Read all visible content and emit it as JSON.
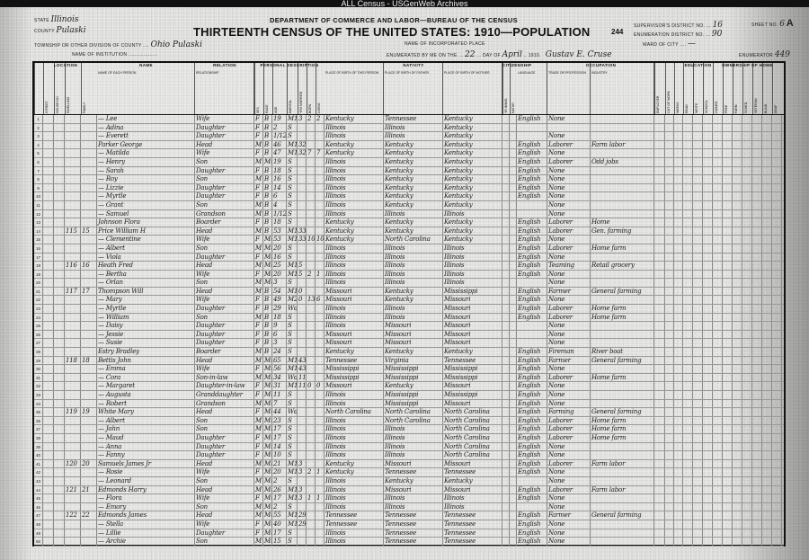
{
  "watermark": "ALL Census - USGenWeb Archives",
  "header": {
    "state_label": "State",
    "state": "Illinois",
    "county_label": "County",
    "county": "Pulaski",
    "township_label": "Township or other division of county",
    "township": "Ohio Pulaski",
    "institution_label": "Name of institution",
    "department": "DEPARTMENT OF COMMERCE AND LABOR—BUREAU OF THE CENSUS",
    "title": "THIRTEENTH CENSUS OF THE UNITED STATES: 1910—POPULATION",
    "page_number": "244",
    "incorporated_label": "Name of incorporated place",
    "enumerated_label": "Enumerated by me on the",
    "day": "22",
    "day_of_label": "day of",
    "month": "April",
    "year_label": "1910.",
    "enumerator_name": "Gustav E. Cruse",
    "supervisor_label": "Supervisor's District No.",
    "supervisor": "16",
    "ed_label": "Enumeration District No.",
    "ed": "90",
    "ward_label": "Ward of city",
    "ward": "—",
    "sheet_label": "Sheet No.",
    "sheet": "6",
    "sheet_letter": "A",
    "enumerator_label": "Enumerator",
    "enumerator_no": "449"
  },
  "sections": [
    "Location",
    "Name",
    "Relation",
    "Personal Description",
    "Nativity",
    "Citizenship",
    "Occupation",
    "Education",
    "Ownership of Home"
  ],
  "columns": [
    "",
    "Street",
    "House no.",
    "Dwelling",
    "Family",
    "Name of each person",
    "Relationship",
    "Sex",
    "Race",
    "Age",
    "Marital",
    "Yrs married",
    "Born",
    "Living",
    "Place of birth of this person",
    "Place of birth of father",
    "Place of birth of mother",
    "Yr immig.",
    "Natur.",
    "Language",
    "Trade or profession",
    "Industry",
    "Employer",
    "Out of work",
    "Weeks",
    "Read",
    "Write",
    "School",
    "Owned",
    "Free",
    "Farm",
    "Sched.",
    "Veteran",
    "Blind",
    "Deaf"
  ],
  "rows": [
    [
      "1",
      "",
      "",
      "",
      "",
      "— Lee",
      "Wife",
      "F",
      "B",
      "19",
      "M1",
      "3",
      "2",
      "2",
      "Kentucky",
      "Tennessee",
      "Kentucky",
      "English",
      "None",
      ""
    ],
    [
      "2",
      "",
      "",
      "",
      "",
      "— Adina",
      "Daughter",
      "F",
      "B",
      "2",
      "S",
      "",
      "",
      "",
      "Illinois",
      "Illinois",
      "Kentucky",
      "",
      "",
      ""
    ],
    [
      "3",
      "",
      "",
      "",
      "",
      "— Everett",
      "Daughter",
      "F",
      "B",
      "1/12",
      "S",
      "",
      "",
      "",
      "Illinois",
      "Illinois",
      "Kentucky",
      "",
      "None",
      ""
    ],
    [
      "4",
      "",
      "",
      "",
      "",
      "Parker George",
      "Head",
      "M",
      "B",
      "46",
      "M1",
      "32",
      "",
      "",
      "Kentucky",
      "Kentucky",
      "Kentucky",
      "English",
      "Laborer",
      "Farm labor"
    ],
    [
      "5",
      "",
      "",
      "",
      "",
      "— Matilda",
      "Wife",
      "F",
      "B",
      "47",
      "M1",
      "32",
      "7",
      "7",
      "Kentucky",
      "Kentucky",
      "Kentucky",
      "English",
      "None",
      ""
    ],
    [
      "6",
      "",
      "",
      "",
      "",
      "— Henry",
      "Son",
      "M",
      "Mu",
      "19",
      "S",
      "",
      "",
      "",
      "Illinois",
      "Kentucky",
      "Kentucky",
      "English",
      "Laborer",
      "Odd jobs"
    ],
    [
      "7",
      "",
      "",
      "",
      "",
      "— Sarah",
      "Daughter",
      "F",
      "B",
      "18",
      "S",
      "",
      "",
      "",
      "Illinois",
      "Kentucky",
      "Kentucky",
      "English",
      "None",
      ""
    ],
    [
      "8",
      "",
      "",
      "",
      "",
      "— Roy",
      "Son",
      "M",
      "B",
      "16",
      "S",
      "",
      "",
      "",
      "Illinois",
      "Kentucky",
      "Kentucky",
      "English",
      "None",
      ""
    ],
    [
      "9",
      "",
      "",
      "",
      "",
      "— Lizzie",
      "Daughter",
      "F",
      "B",
      "14",
      "S",
      "",
      "",
      "",
      "Illinois",
      "Kentucky",
      "Kentucky",
      "English",
      "None",
      ""
    ],
    [
      "10",
      "",
      "",
      "",
      "",
      "— Myrtle",
      "Daughter",
      "F",
      "B",
      "6",
      "S",
      "",
      "",
      "",
      "Illinois",
      "Kentucky",
      "Kentucky",
      "English",
      "None",
      ""
    ],
    [
      "11",
      "",
      "",
      "",
      "",
      "— Grant",
      "Son",
      "M",
      "B",
      "4",
      "S",
      "",
      "",
      "",
      "Illinois",
      "Kentucky",
      "Kentucky",
      "",
      "None",
      ""
    ],
    [
      "12",
      "",
      "",
      "",
      "",
      "— Samuel",
      "Grandson",
      "M",
      "B",
      "1/12",
      "S",
      "",
      "",
      "",
      "Illinois",
      "Illinois",
      "Illinois",
      "",
      "None",
      ""
    ],
    [
      "13",
      "",
      "",
      "",
      "",
      "Johnson Flora",
      "Boarder",
      "F",
      "B",
      "18",
      "S",
      "",
      "",
      "",
      "Kentucky",
      "Kentucky",
      "Kentucky",
      "English",
      "Laborer",
      "Home"
    ],
    [
      "14",
      "",
      "",
      "115",
      "15",
      "Price William H",
      "Head",
      "M",
      "B",
      "53",
      "M1",
      "33",
      "",
      "",
      "Kentucky",
      "Kentucky",
      "Kentucky",
      "English",
      "Laborer",
      "Gen. farming"
    ],
    [
      "15",
      "",
      "",
      "",
      "",
      "— Clementine",
      "Wife",
      "F",
      "Mu",
      "53",
      "M1",
      "33",
      "10",
      "10",
      "Kentucky",
      "North Carolina",
      "Kentucky",
      "English",
      "None",
      ""
    ],
    [
      "16",
      "",
      "",
      "",
      "",
      "— Albert",
      "Son",
      "M",
      "Mu",
      "20",
      "S",
      "",
      "",
      "",
      "Illinois",
      "Illinois",
      "Illinois",
      "English",
      "Laborer",
      "Home farm"
    ],
    [
      "17",
      "",
      "",
      "",
      "",
      "— Viola",
      "Daughter",
      "F",
      "Mu",
      "16",
      "S",
      "",
      "",
      "",
      "Illinois",
      "Illinois",
      "Illinois",
      "English",
      "None",
      ""
    ],
    [
      "18",
      "",
      "",
      "116",
      "16",
      "Heath Fred",
      "Head",
      "M",
      "Mu",
      "25",
      "M1",
      "5",
      "",
      "",
      "Illinois",
      "Illinois",
      "Illinois",
      "English",
      "Teaming",
      "Retail grocery"
    ],
    [
      "19",
      "",
      "",
      "",
      "",
      "— Bertha",
      "Wife",
      "F",
      "Mu",
      "20",
      "M1",
      "5",
      "2",
      "1",
      "Illinois",
      "Illinois",
      "Illinois",
      "English",
      "None",
      ""
    ],
    [
      "20",
      "",
      "",
      "",
      "",
      "— Orlan",
      "Son",
      "M",
      "Mu",
      "3",
      "S",
      "",
      "",
      "",
      "Illinois",
      "Illinois",
      "Illinois",
      "",
      "None",
      ""
    ],
    [
      "21",
      "",
      "",
      "117",
      "17",
      "Thompson Will",
      "Head",
      "M",
      "B",
      "54",
      "M1",
      "0",
      "",
      "",
      "Missouri",
      "Kentucky",
      "Mississippi",
      "English",
      "Farmer",
      "General farming"
    ],
    [
      "22",
      "",
      "",
      "",
      "",
      "— Mary",
      "Wife",
      "F",
      "B",
      "49",
      "M2",
      "0",
      "13",
      "6",
      "Missouri",
      "Kentucky",
      "Missouri",
      "English",
      "None",
      ""
    ],
    [
      "23",
      "",
      "",
      "",
      "",
      "— Myrtle",
      "Daughter",
      "F",
      "B",
      "29",
      "Wd",
      "",
      "",
      "",
      "Illinois",
      "Illinois",
      "Missouri",
      "English",
      "Laborer",
      "Home farm"
    ],
    [
      "24",
      "",
      "",
      "",
      "",
      "— William",
      "Son",
      "M",
      "B",
      "18",
      "S",
      "",
      "",
      "",
      "Illinois",
      "Illinois",
      "Missouri",
      "English",
      "Laborer",
      "Home farm"
    ],
    [
      "25",
      "",
      "",
      "",
      "",
      "— Daisy",
      "Daughter",
      "F",
      "B",
      "9",
      "S",
      "",
      "",
      "",
      "Illinois",
      "Missouri",
      "Missouri",
      "",
      "None",
      ""
    ],
    [
      "26",
      "",
      "",
      "",
      "",
      "— Jessie",
      "Daughter",
      "F",
      "B",
      "6",
      "S",
      "",
      "",
      "",
      "Missouri",
      "Missouri",
      "Missouri",
      "",
      "None",
      ""
    ],
    [
      "27",
      "",
      "",
      "",
      "",
      "— Susie",
      "Daughter",
      "F",
      "B",
      "3",
      "S",
      "",
      "",
      "",
      "Missouri",
      "Missouri",
      "Missouri",
      "",
      "None",
      ""
    ],
    [
      "28",
      "",
      "",
      "",
      "",
      "Estry Bradley",
      "Boarder",
      "M",
      "B",
      "24",
      "S",
      "",
      "",
      "",
      "Kentucky",
      "Kentucky",
      "Kentucky",
      "English",
      "Fireman",
      "River boat"
    ],
    [
      "29",
      "",
      "",
      "118",
      "18",
      "Bettis John",
      "Head",
      "M",
      "Mu",
      "65",
      "M1",
      "43",
      "",
      "",
      "Tennessee",
      "Virginia",
      "Tennessee",
      "English",
      "Farmer",
      "General farming"
    ],
    [
      "30",
      "",
      "",
      "",
      "",
      "— Emma",
      "Wife",
      "F",
      "Mu",
      "56",
      "M1",
      "43",
      "",
      "",
      "Mississippi",
      "Mississippi",
      "Mississippi",
      "English",
      "None",
      ""
    ],
    [
      "31",
      "",
      "",
      "",
      "",
      "— Cora",
      "Son-in-law",
      "M",
      "Mu",
      "34",
      "Wd",
      "11",
      "",
      "",
      "Mississippi",
      "Mississippi",
      "Mississippi",
      "English",
      "Laborer",
      "Home farm"
    ],
    [
      "32",
      "",
      "",
      "",
      "",
      "— Margaret",
      "Daughter-in-law",
      "F",
      "Mu",
      "31",
      "M1",
      "11",
      "0",
      "0",
      "Missouri",
      "Kentucky",
      "Missouri",
      "English",
      "None",
      ""
    ],
    [
      "33",
      "",
      "",
      "",
      "",
      "— Augusta",
      "Granddaughter",
      "F",
      "Mu",
      "11",
      "S",
      "",
      "",
      "",
      "Illinois",
      "Mississippi",
      "Mississippi",
      "English",
      "None",
      ""
    ],
    [
      "34",
      "",
      "",
      "",
      "",
      "— Robert",
      "Grandson",
      "M",
      "Mu",
      "7",
      "S",
      "",
      "",
      "",
      "Illinois",
      "Mississippi",
      "Missouri",
      "English",
      "None",
      ""
    ],
    [
      "35",
      "",
      "",
      "119",
      "19",
      "White Mary",
      "Head",
      "F",
      "Mu",
      "44",
      "Wd",
      "",
      "",
      "",
      "North Carolina",
      "North Carolina",
      "North Carolina",
      "English",
      "Farming",
      "General farming"
    ],
    [
      "36",
      "",
      "",
      "",
      "",
      "— Albert",
      "Son",
      "M",
      "Mu",
      "23",
      "S",
      "",
      "",
      "",
      "Illinois",
      "North Carolina",
      "North Carolina",
      "English",
      "Laborer",
      "Home farm"
    ],
    [
      "37",
      "",
      "",
      "",
      "",
      "— John",
      "Son",
      "M",
      "Mu",
      "17",
      "S",
      "",
      "",
      "",
      "Illinois",
      "Illinois",
      "North Carolina",
      "English",
      "Laborer",
      "Home farm"
    ],
    [
      "38",
      "",
      "",
      "",
      "",
      "— Maud",
      "Daughter",
      "F",
      "Mu",
      "17",
      "S",
      "",
      "",
      "",
      "Illinois",
      "Illinois",
      "North Carolina",
      "English",
      "Laborer",
      "Home farm"
    ],
    [
      "39",
      "",
      "",
      "",
      "",
      "— Anna",
      "Daughter",
      "F",
      "Mu",
      "14",
      "S",
      "",
      "",
      "",
      "Illinois",
      "Illinois",
      "North Carolina",
      "English",
      "None",
      ""
    ],
    [
      "40",
      "",
      "",
      "",
      "",
      "— Fanny",
      "Daughter",
      "F",
      "Mu",
      "10",
      "S",
      "",
      "",
      "",
      "Illinois",
      "Illinois",
      "North Carolina",
      "English",
      "None",
      ""
    ],
    [
      "41",
      "",
      "",
      "120",
      "20",
      "Samuels James Jr",
      "Head",
      "M",
      "Mu",
      "21",
      "M1",
      "3",
      "",
      "",
      "Kentucky",
      "Missouri",
      "Missouri",
      "English",
      "Laborer",
      "Farm labor"
    ],
    [
      "42",
      "",
      "",
      "",
      "",
      "— Rosie",
      "Wife",
      "F",
      "Mu",
      "20",
      "M1",
      "3",
      "2",
      "1",
      "Kentucky",
      "Tennessee",
      "Tennessee",
      "English",
      "None",
      ""
    ],
    [
      "43",
      "",
      "",
      "",
      "",
      "— Leonard",
      "Son",
      "M",
      "Mu",
      "2",
      "S",
      "",
      "",
      "",
      "Illinois",
      "Kentucky",
      "Kentucky",
      "",
      "None",
      ""
    ],
    [
      "44",
      "",
      "",
      "121",
      "21",
      "Edmonds Harry",
      "Head",
      "M",
      "Mu",
      "26",
      "M1",
      "3",
      "",
      "",
      "Illinois",
      "Missouri",
      "Missouri",
      "English",
      "Laborer",
      "Farm labor"
    ],
    [
      "45",
      "",
      "",
      "",
      "",
      "— Flora",
      "Wife",
      "F",
      "Mu",
      "17",
      "M1",
      "3",
      "1",
      "1",
      "Illinois",
      "Illinois",
      "Illinois",
      "English",
      "None",
      ""
    ],
    [
      "46",
      "",
      "",
      "",
      "",
      "— Emory",
      "Son",
      "M",
      "Mu",
      "2",
      "S",
      "",
      "",
      "",
      "Illinois",
      "Illinois",
      "Illinois",
      "",
      "None",
      ""
    ],
    [
      "47",
      "",
      "",
      "122",
      "22",
      "Edmonds James",
      "Head",
      "M",
      "Mu",
      "55",
      "M1",
      "29",
      "",
      "",
      "Tennessee",
      "Tennessee",
      "Tennessee",
      "English",
      "Farmer",
      "General farming"
    ],
    [
      "48",
      "",
      "",
      "",
      "",
      "— Stella",
      "Wife",
      "F",
      "Mu",
      "40",
      "M1",
      "29",
      "",
      "",
      "Tennessee",
      "Tennessee",
      "Tennessee",
      "English",
      "None",
      ""
    ],
    [
      "49",
      "",
      "",
      "",
      "",
      "— Lillie",
      "Daughter",
      "F",
      "Mu",
      "17",
      "S",
      "",
      "",
      "",
      "Illinois",
      "Tennessee",
      "Tennessee",
      "English",
      "None",
      ""
    ],
    [
      "50",
      "",
      "",
      "",
      "",
      "— Archie",
      "Son",
      "M",
      "Mu",
      "15",
      "S",
      "",
      "",
      "",
      "Illinois",
      "Tennessee",
      "Tennessee",
      "English",
      "None",
      ""
    ]
  ]
}
